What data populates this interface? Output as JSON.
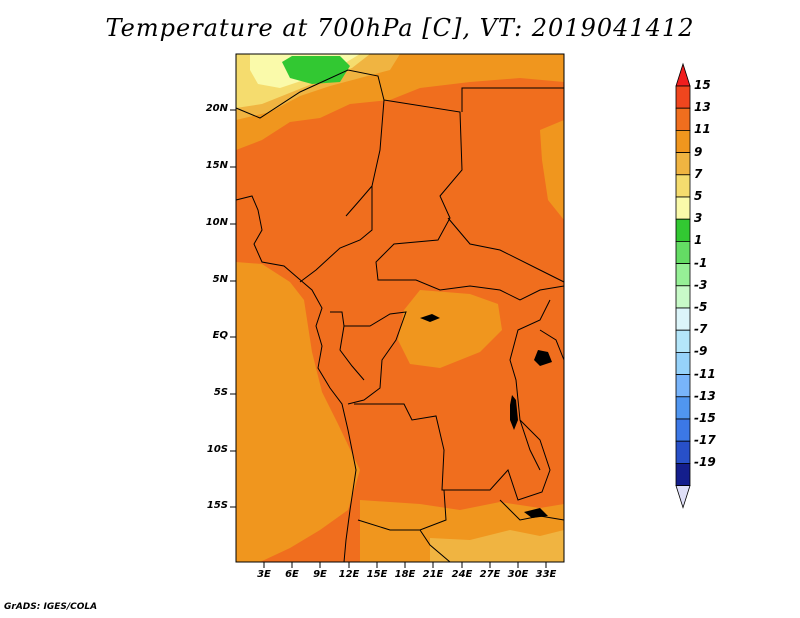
{
  "title": "Temperature at 700hPa [C], VT: 2019041412",
  "credit": "GrADS: IGES/COLA",
  "lat_labels": [
    "20N",
    "15N",
    "10N",
    "5N",
    "EQ",
    "5S",
    "10S",
    "15S"
  ],
  "lon_labels": [
    "3E",
    "6E",
    "9E",
    "12E",
    "15E",
    "18E",
    "21E",
    "24E",
    "27E",
    "30E",
    "33E"
  ],
  "colorbar": {
    "labels": [
      "15",
      "13",
      "11",
      "9",
      "7",
      "5",
      "3",
      "1",
      "-1",
      "-3",
      "-5",
      "-7",
      "-9",
      "-11",
      "-13",
      "-15",
      "-17",
      "-19"
    ],
    "colors": [
      "#f01e1e",
      "#f0461e",
      "#f06e1e",
      "#f0961e",
      "#f0b441",
      "#f5dc6e",
      "#fafaaa",
      "#32c832",
      "#64dc64",
      "#96f096",
      "#c8fac8",
      "#dcf5fa",
      "#b4e6fa",
      "#96d2fa",
      "#78b4fa",
      "#5096f0",
      "#3c78e6",
      "#2850c8",
      "#141e8c"
    ]
  },
  "colors": {
    "deep_orange": "#f06e1e",
    "orange": "#f0961e",
    "light_orange": "#f0b441",
    "yellow": "#f5dc6e",
    "pale_yellow": "#fafaaa",
    "green": "#32c832",
    "lines": "#000000"
  }
}
